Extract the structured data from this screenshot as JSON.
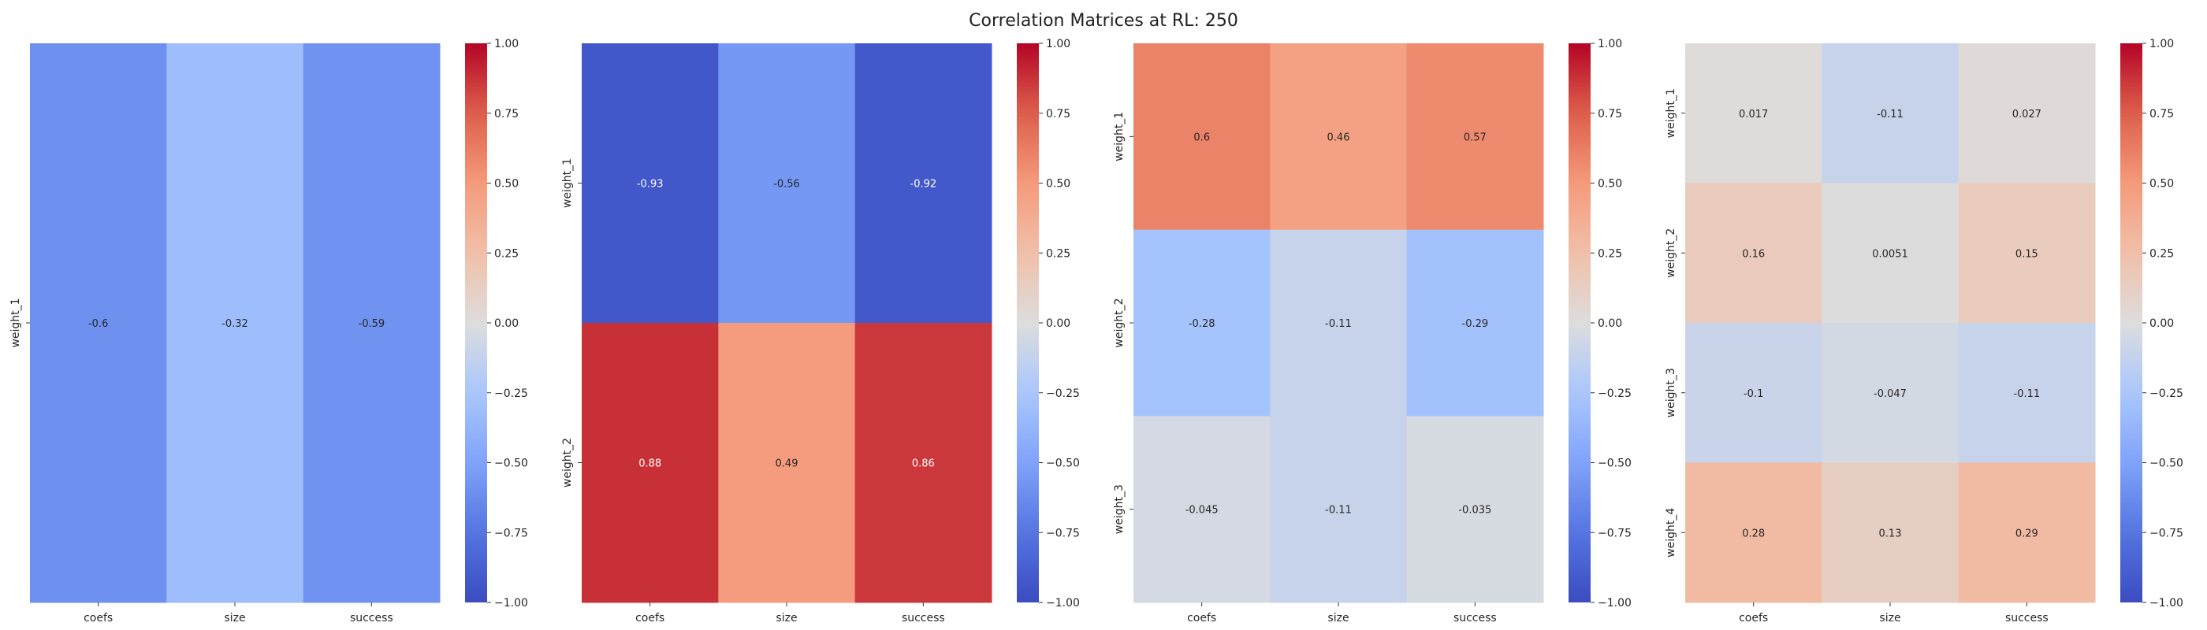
{
  "figure": {
    "title": "Correlation Matrices at RL: 250"
  },
  "chart_data": [
    {
      "type": "heatmap",
      "x_categories": [
        "coefs",
        "size",
        "success"
      ],
      "y_categories": [
        "weight_1"
      ],
      "values": [
        [
          -0.6,
          -0.32,
          -0.59
        ]
      ],
      "value_labels": [
        [
          "-0.6",
          "-0.32",
          "-0.59"
        ]
      ],
      "colorbar": {
        "min": -1.0,
        "max": 1.0,
        "ticks": [
          "1.00",
          "0.75",
          "0.50",
          "0.25",
          "0.00",
          "−0.25",
          "−0.50",
          "−0.75",
          "−1.00"
        ]
      },
      "colormap": "coolwarm",
      "grid": false
    },
    {
      "type": "heatmap",
      "x_categories": [
        "coefs",
        "size",
        "success"
      ],
      "y_categories": [
        "weight_1",
        "weight_2"
      ],
      "values": [
        [
          -0.93,
          -0.56,
          -0.92
        ],
        [
          0.88,
          0.49,
          0.86
        ]
      ],
      "value_labels": [
        [
          "-0.93",
          "-0.56",
          "-0.92"
        ],
        [
          "0.88",
          "0.49",
          "0.86"
        ]
      ],
      "colorbar": {
        "min": -1.0,
        "max": 1.0,
        "ticks": [
          "1.00",
          "0.75",
          "0.50",
          "0.25",
          "0.00",
          "−0.25",
          "−0.50",
          "−0.75",
          "−1.00"
        ]
      },
      "colormap": "coolwarm",
      "grid": false
    },
    {
      "type": "heatmap",
      "x_categories": [
        "coefs",
        "size",
        "success"
      ],
      "y_categories": [
        "weight_1",
        "weight_2",
        "weight_3"
      ],
      "values": [
        [
          0.6,
          0.46,
          0.57
        ],
        [
          -0.28,
          -0.11,
          -0.29
        ],
        [
          -0.045,
          -0.11,
          -0.035
        ]
      ],
      "value_labels": [
        [
          "0.6",
          "0.46",
          "0.57"
        ],
        [
          "-0.28",
          "-0.11",
          "-0.29"
        ],
        [
          "-0.045",
          "-0.11",
          "-0.035"
        ]
      ],
      "colorbar": {
        "min": -1.0,
        "max": 1.0,
        "ticks": [
          "1.00",
          "0.75",
          "0.50",
          "0.25",
          "0.00",
          "−0.25",
          "−0.50",
          "−0.75",
          "−1.00"
        ]
      },
      "colormap": "coolwarm",
      "grid": false
    },
    {
      "type": "heatmap",
      "x_categories": [
        "coefs",
        "size",
        "success"
      ],
      "y_categories": [
        "weight_1",
        "weight_2",
        "weight_3",
        "weight_4"
      ],
      "values": [
        [
          0.017,
          -0.11,
          0.027
        ],
        [
          0.16,
          0.0051,
          0.15
        ],
        [
          -0.1,
          -0.047,
          -0.11
        ],
        [
          0.28,
          0.13,
          0.29
        ]
      ],
      "value_labels": [
        [
          "0.017",
          "-0.11",
          "0.027"
        ],
        [
          "0.16",
          "0.0051",
          "0.15"
        ],
        [
          "-0.1",
          "-0.047",
          "-0.11"
        ],
        [
          "0.28",
          "0.13",
          "0.29"
        ]
      ],
      "colorbar": {
        "min": -1.0,
        "max": 1.0,
        "ticks": [
          "1.00",
          "0.75",
          "0.50",
          "0.25",
          "0.00",
          "−0.25",
          "−0.50",
          "−0.75",
          "−1.00"
        ]
      },
      "colormap": "coolwarm",
      "grid": false
    }
  ]
}
